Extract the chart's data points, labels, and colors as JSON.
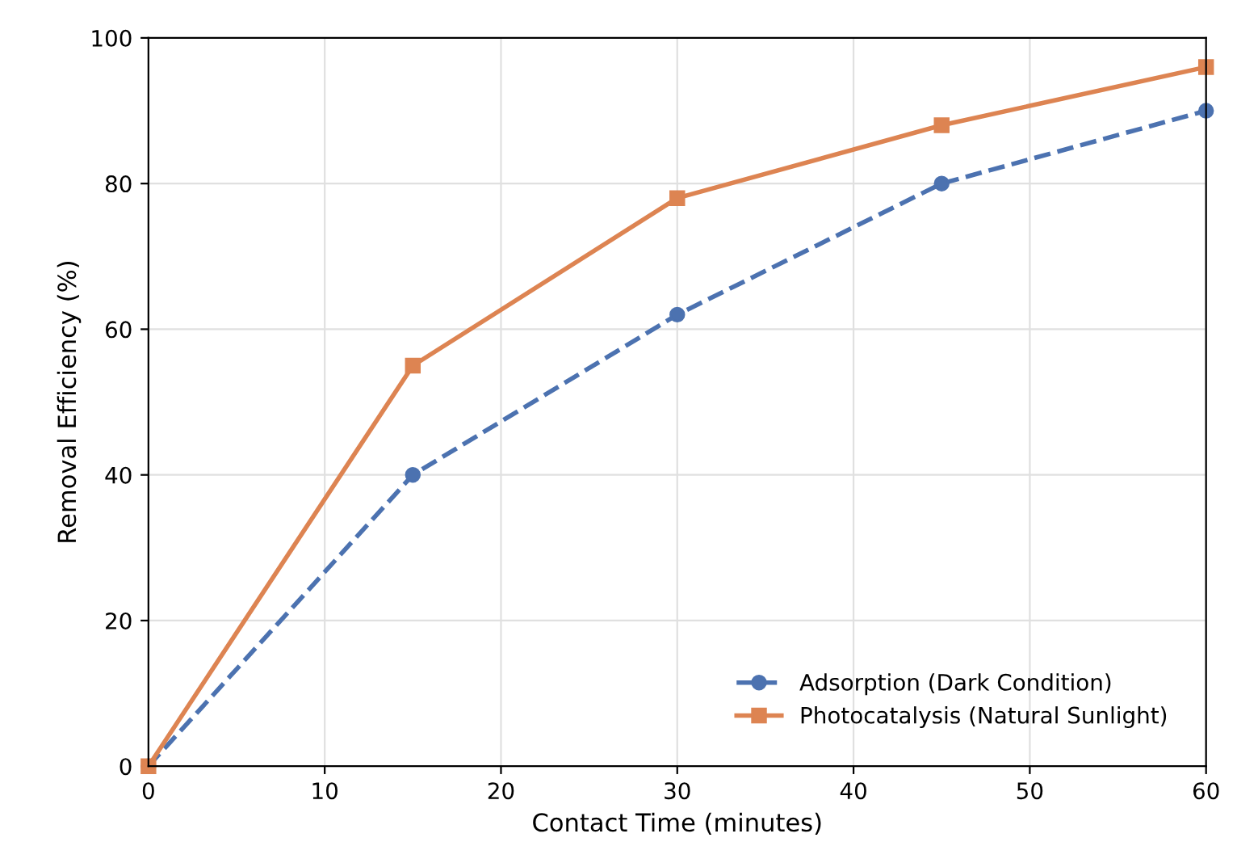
{
  "chart_data": {
    "type": "line",
    "xlabel": "Contact Time (minutes)",
    "ylabel": "Removal Efficiency (%)",
    "x": [
      0,
      15,
      30,
      45,
      60
    ],
    "series": [
      {
        "name": "Adsorption (Dark Condition)",
        "color": "#4c72b0",
        "values": [
          0,
          40,
          62,
          80,
          90
        ],
        "marker": "circle",
        "line_style": "dashed"
      },
      {
        "name": "Photocatalysis (Natural Sunlight)",
        "color": "#dd8452",
        "values": [
          0,
          55,
          78,
          88,
          96
        ],
        "marker": "square",
        "line_style": "solid"
      }
    ],
    "xlim": [
      0,
      60
    ],
    "xticks": [
      0,
      10,
      20,
      30,
      40,
      50,
      60
    ],
    "ylim": [
      0,
      100
    ],
    "yticks": [
      0,
      20,
      40,
      60,
      80,
      100
    ],
    "grid": true,
    "legend": "bottom right"
  }
}
